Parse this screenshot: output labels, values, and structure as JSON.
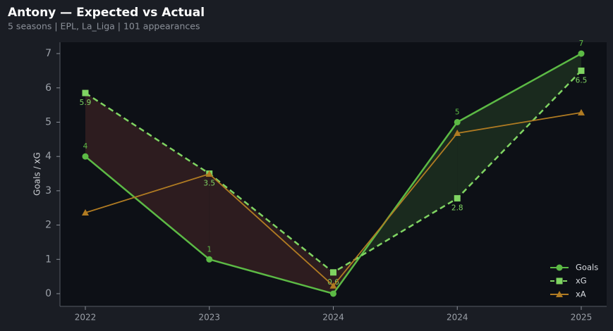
{
  "chart_data": {
    "type": "line",
    "title": "Antony — Expected vs Actual",
    "subtitle": "5 seasons | EPL, La_Liga | 101 appearances",
    "y_label": "Goals / xG",
    "categories": [
      "2022",
      "2023",
      "2024",
      "2024",
      "2025"
    ],
    "series": [
      {
        "name": "Goals",
        "color": "#5cba45",
        "marker": "circle",
        "dashed": false,
        "values": [
          4,
          1,
          0,
          5,
          7
        ],
        "value_labels": [
          "4",
          "1",
          null,
          "5",
          "7"
        ],
        "label_position": "above"
      },
      {
        "name": "xG",
        "color": "#7fd462",
        "marker": "square",
        "dashed": true,
        "values": [
          5.85,
          3.5,
          0.62,
          2.78,
          6.5
        ],
        "value_labels": [
          "5.9",
          "3.5",
          "0.6",
          "2.8",
          "6.5"
        ],
        "label_position": "below"
      },
      {
        "name": "xA",
        "color": "#b07b22",
        "marker": "triangle",
        "dashed": false,
        "values": [
          2.36,
          3.49,
          0.23,
          4.68,
          5.28
        ]
      }
    ],
    "ylim": [
      -0.37,
      7.33
    ],
    "yticks": [
      0,
      1,
      2,
      3,
      4,
      5,
      6,
      7
    ],
    "grid": false,
    "legend": "lower right"
  }
}
